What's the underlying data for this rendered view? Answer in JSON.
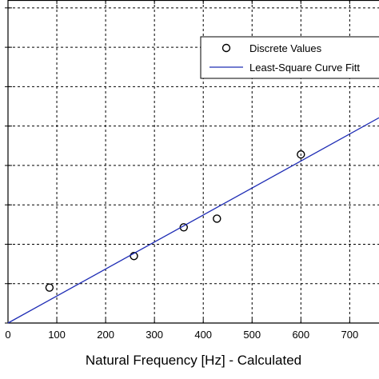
{
  "chart_data": {
    "type": "scatter",
    "xlabel": "Natural Frequency [Hz] - Calculated",
    "ylabel": "",
    "xlim": [
      0,
      760
    ],
    "ylim": [
      0,
      820
    ],
    "x_ticks": [
      0,
      100,
      200,
      300,
      400,
      500,
      600,
      700
    ],
    "x_tick_labels": [
      "0",
      "100",
      "200",
      "300",
      "400",
      "500",
      "600",
      "700"
    ],
    "y_ticks": [
      0,
      100,
      200,
      300,
      400,
      500,
      600,
      700,
      800
    ],
    "grid": true,
    "grid_style": "dashed",
    "legend_position": "top-right",
    "series": [
      {
        "name": "Discrete Values",
        "kind": "markers",
        "marker": "circle-open",
        "color": "#000000",
        "x": [
          85,
          258,
          360,
          428,
          600
        ],
        "y": [
          90,
          170,
          243,
          265,
          428
        ]
      },
      {
        "name": "Least-Square Curve Fitt",
        "kind": "line",
        "color": "#1f2db5",
        "x": [
          0,
          760
        ],
        "y": [
          0,
          521
        ]
      }
    ]
  }
}
